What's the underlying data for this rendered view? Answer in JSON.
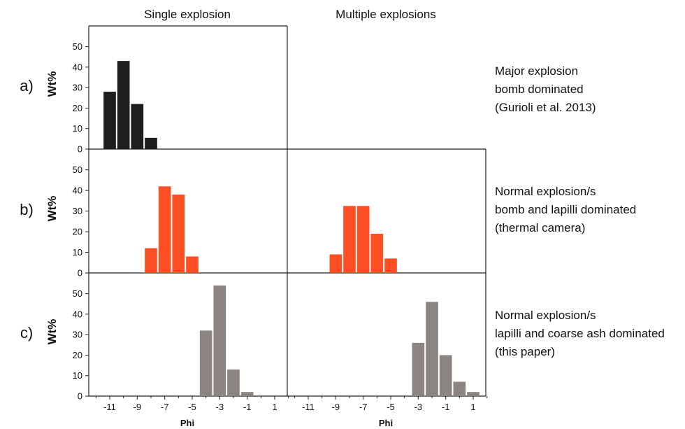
{
  "column_titles": [
    "Single explosion",
    "Multiple explosions"
  ],
  "colors": {
    "row_a": "#1e1e1e",
    "row_b": "#fc4f24",
    "row_c": "#8c8480",
    "axis": "#222222"
  },
  "rows": [
    {
      "label": "a)",
      "ylabel": "Wt%",
      "description": [
        "Major explosion",
        "bomb dominated",
        "(Gurioli et al. 2013)"
      ]
    },
    {
      "label": "b)",
      "ylabel": "Wt%",
      "description": [
        "Normal explosion/s",
        "bomb and lapilli dominated",
        "(thermal camera)"
      ]
    },
    {
      "label": "c)",
      "ylabel": "Wt%",
      "description": [
        "Normal explosion/s",
        "lapilli and coarse ash dominated",
        "(this paper)"
      ]
    }
  ],
  "x_tick_labels": [
    "-11",
    "-9",
    "-7",
    "-5",
    "-3",
    "-1",
    "1"
  ],
  "x_axis_label": "Phi",
  "chart_data": [
    {
      "type": "bar",
      "panel": "a-single",
      "row": 0,
      "col": 0,
      "color": "row_a",
      "x": [
        -11,
        -10,
        -9,
        -8
      ],
      "values": [
        28,
        43,
        22,
        5.5
      ],
      "yticks": [
        0,
        10,
        20,
        30,
        40,
        50
      ],
      "ylim": [
        0,
        55
      ],
      "xlim": [
        -12,
        2
      ],
      "show_xticks": false
    },
    {
      "type": "bar",
      "panel": "b-single",
      "row": 1,
      "col": 0,
      "color": "row_b",
      "x": [
        -8,
        -7,
        -6,
        -5
      ],
      "values": [
        12,
        42,
        38,
        8
      ],
      "yticks": [
        0,
        10,
        20,
        30,
        40,
        50
      ],
      "ylim": [
        0,
        55
      ],
      "xlim": [
        -12,
        2
      ],
      "show_xticks": false
    },
    {
      "type": "bar",
      "panel": "b-multiple",
      "row": 1,
      "col": 1,
      "color": "row_b",
      "x": [
        -9,
        -8,
        -7,
        -6,
        -5
      ],
      "values": [
        9,
        32.5,
        32.5,
        19,
        7
      ],
      "yticks": [],
      "ylim": [
        0,
        55
      ],
      "xlim": [
        -12,
        2
      ],
      "show_xticks": false
    },
    {
      "type": "bar",
      "panel": "c-single",
      "row": 2,
      "col": 0,
      "color": "row_c",
      "x": [
        -4,
        -3,
        -2,
        -1
      ],
      "values": [
        32,
        54,
        13,
        2
      ],
      "yticks": [
        0,
        10,
        20,
        30,
        40,
        50
      ],
      "ylim": [
        0,
        55
      ],
      "xlim": [
        -12,
        2
      ],
      "show_xticks": true
    },
    {
      "type": "bar",
      "panel": "c-multiple",
      "row": 2,
      "col": 1,
      "color": "row_c",
      "x": [
        -3,
        -2,
        -1,
        0,
        1
      ],
      "values": [
        26,
        46,
        20,
        7,
        2
      ],
      "yticks": [],
      "ylim": [
        0,
        55
      ],
      "xlim": [
        -12,
        2
      ],
      "show_xticks": true
    }
  ]
}
